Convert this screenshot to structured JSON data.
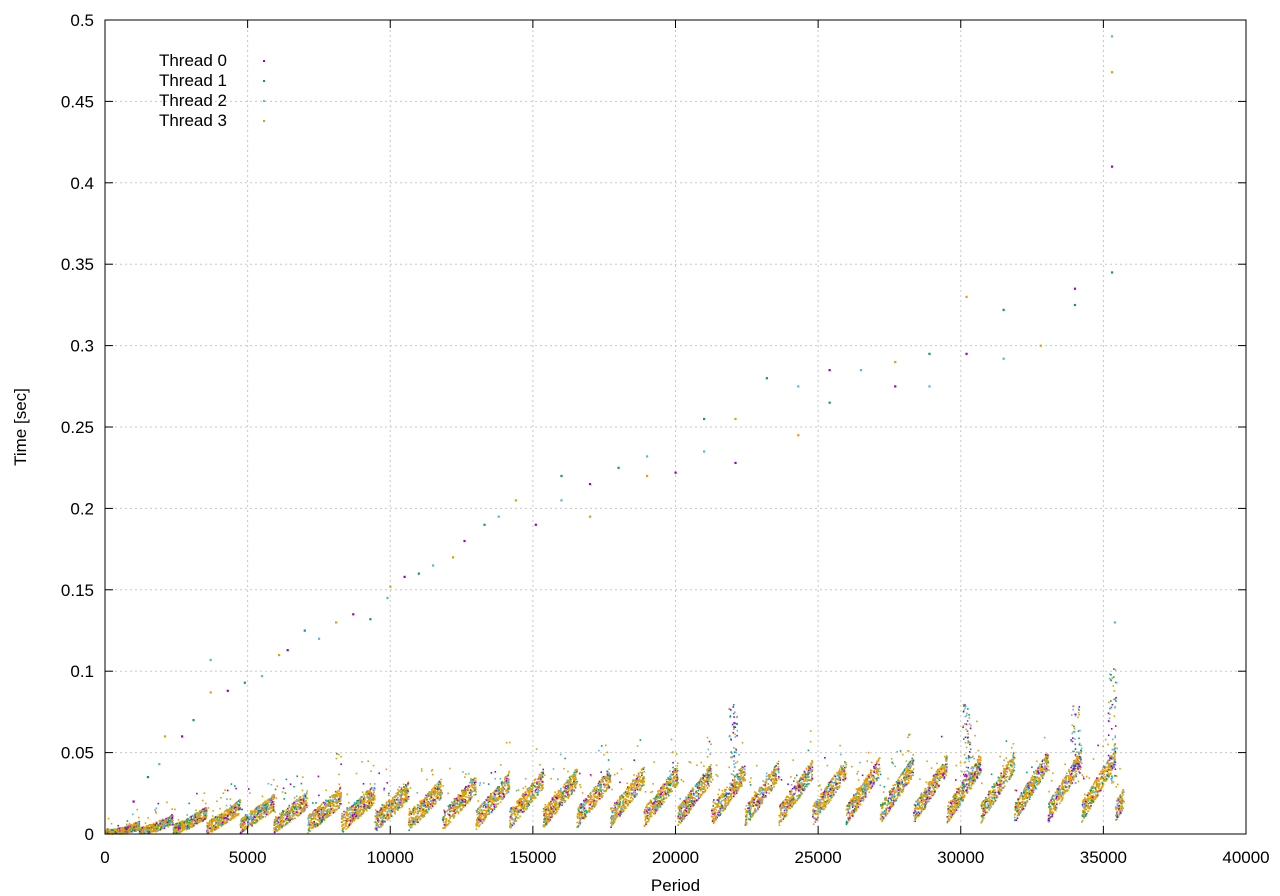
{
  "chart_data": {
    "type": "scatter",
    "title": "",
    "xlabel": "Period",
    "ylabel": "Time [sec]",
    "xlim": [
      0,
      40000
    ],
    "ylim": [
      0,
      0.5
    ],
    "xticks": [
      0,
      5000,
      10000,
      15000,
      20000,
      25000,
      30000,
      35000,
      40000
    ],
    "xtick_labels": [
      "0",
      "5000",
      "10000",
      "15000",
      "20000",
      "25000",
      "30000",
      "35000",
      "40000"
    ],
    "yticks": [
      0,
      0.05,
      0.1,
      0.15,
      0.2,
      0.25,
      0.3,
      0.35,
      0.4,
      0.45,
      0.5
    ],
    "ytick_labels": [
      "0",
      "0.05",
      "0.1",
      "0.15",
      "0.2",
      "0.25",
      "0.3",
      "0.35",
      "0.4",
      "0.45",
      "0.5"
    ],
    "grid": true,
    "legend_position": "top-left",
    "series": [
      {
        "name": "Thread 0",
        "color": "#9400d3"
      },
      {
        "name": "Thread 1",
        "color": "#009e73"
      },
      {
        "name": "Thread 2",
        "color": "#56b4e9"
      },
      {
        "name": "Thread 3",
        "color": "#e69f00"
      }
    ],
    "bulk": {
      "x_range": [
        0,
        35700
      ],
      "description_points": [
        {
          "x": 0,
          "y": 0.001
        },
        {
          "x": 5000,
          "y": 0.012
        },
        {
          "x": 10000,
          "y": 0.017
        },
        {
          "x": 15000,
          "y": 0.022
        },
        {
          "x": 20000,
          "y": 0.024
        },
        {
          "x": 25000,
          "y": 0.026
        },
        {
          "x": 30000,
          "y": 0.028
        },
        {
          "x": 35000,
          "y": 0.031
        }
      ],
      "cycle_period": 1180,
      "spike_peaks": [
        {
          "x": 35300,
          "y": 0.105
        },
        {
          "x": 34000,
          "y": 0.08
        },
        {
          "x": 30200,
          "y": 0.08
        },
        {
          "x": 22000,
          "y": 0.08
        }
      ]
    },
    "outliers": [
      {
        "x": 1000,
        "y": 0.02
      },
      {
        "x": 1500,
        "y": 0.035
      },
      {
        "x": 1900,
        "y": 0.043
      },
      {
        "x": 2100,
        "y": 0.06
      },
      {
        "x": 2700,
        "y": 0.06
      },
      {
        "x": 3100,
        "y": 0.07
      },
      {
        "x": 3700,
        "y": 0.107
      },
      {
        "x": 3700,
        "y": 0.087
      },
      {
        "x": 4300,
        "y": 0.088
      },
      {
        "x": 4900,
        "y": 0.093
      },
      {
        "x": 5500,
        "y": 0.097
      },
      {
        "x": 6100,
        "y": 0.11
      },
      {
        "x": 6400,
        "y": 0.113
      },
      {
        "x": 7000,
        "y": 0.125
      },
      {
        "x": 7500,
        "y": 0.12
      },
      {
        "x": 8100,
        "y": 0.13
      },
      {
        "x": 8700,
        "y": 0.135
      },
      {
        "x": 9300,
        "y": 0.132
      },
      {
        "x": 9900,
        "y": 0.145
      },
      {
        "x": 10000,
        "y": 0.152
      },
      {
        "x": 10500,
        "y": 0.158
      },
      {
        "x": 11000,
        "y": 0.16
      },
      {
        "x": 11500,
        "y": 0.165
      },
      {
        "x": 12200,
        "y": 0.17
      },
      {
        "x": 12600,
        "y": 0.18
      },
      {
        "x": 13300,
        "y": 0.19
      },
      {
        "x": 13800,
        "y": 0.195
      },
      {
        "x": 14400,
        "y": 0.205
      },
      {
        "x": 15100,
        "y": 0.19
      },
      {
        "x": 16000,
        "y": 0.22
      },
      {
        "x": 16000,
        "y": 0.205
      },
      {
        "x": 17000,
        "y": 0.195
      },
      {
        "x": 17000,
        "y": 0.215
      },
      {
        "x": 18000,
        "y": 0.225
      },
      {
        "x": 19000,
        "y": 0.232
      },
      {
        "x": 19000,
        "y": 0.22
      },
      {
        "x": 20000,
        "y": 0.222
      },
      {
        "x": 21000,
        "y": 0.255
      },
      {
        "x": 21000,
        "y": 0.235
      },
      {
        "x": 22100,
        "y": 0.255
      },
      {
        "x": 22100,
        "y": 0.228
      },
      {
        "x": 23200,
        "y": 0.28
      },
      {
        "x": 24300,
        "y": 0.275
      },
      {
        "x": 24300,
        "y": 0.245
      },
      {
        "x": 25400,
        "y": 0.285
      },
      {
        "x": 25400,
        "y": 0.265
      },
      {
        "x": 26500,
        "y": 0.285
      },
      {
        "x": 27700,
        "y": 0.29
      },
      {
        "x": 27700,
        "y": 0.275
      },
      {
        "x": 28900,
        "y": 0.295
      },
      {
        "x": 28900,
        "y": 0.275
      },
      {
        "x": 30200,
        "y": 0.33
      },
      {
        "x": 30200,
        "y": 0.295
      },
      {
        "x": 31500,
        "y": 0.322
      },
      {
        "x": 31500,
        "y": 0.292
      },
      {
        "x": 32800,
        "y": 0.3
      },
      {
        "x": 34000,
        "y": 0.335
      },
      {
        "x": 34000,
        "y": 0.325
      },
      {
        "x": 35300,
        "y": 0.49
      },
      {
        "x": 35300,
        "y": 0.468
      },
      {
        "x": 35300,
        "y": 0.41
      },
      {
        "x": 35300,
        "y": 0.345
      },
      {
        "x": 35400,
        "y": 0.13
      }
    ]
  }
}
